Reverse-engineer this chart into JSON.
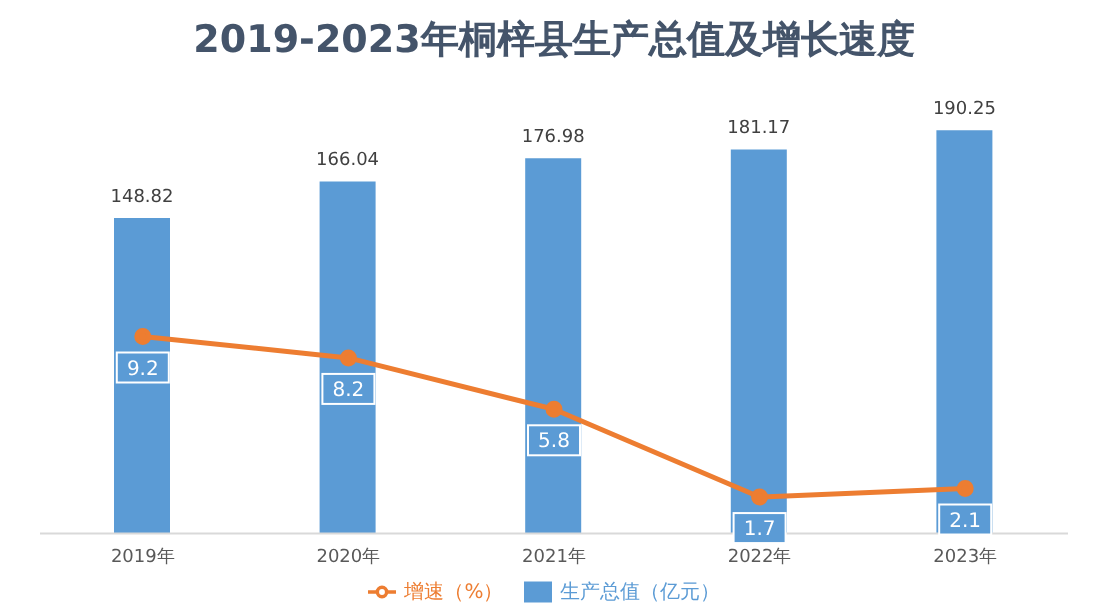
{
  "chart_data": {
    "type": "bar",
    "title": "2019-2023年桐梓县生产总值及增长速度",
    "categories": [
      "2019年",
      "2020年",
      "2021年",
      "2022年",
      "2023年"
    ],
    "series": [
      {
        "name": "生产总值（亿元）",
        "color": "#5b9bd5",
        "values": [
          148.82,
          166.04,
          176.98,
          181.17,
          190.25
        ]
      },
      {
        "name": "增速（%）",
        "type": "line",
        "axis": "y2",
        "color": "#ed7d31",
        "values": [
          9.2,
          8.2,
          5.8,
          1.7,
          2.1
        ]
      }
    ],
    "data_labels": true,
    "legend": "bottom",
    "grid": false,
    "marker": "circle",
    "line_style": "solid"
  }
}
